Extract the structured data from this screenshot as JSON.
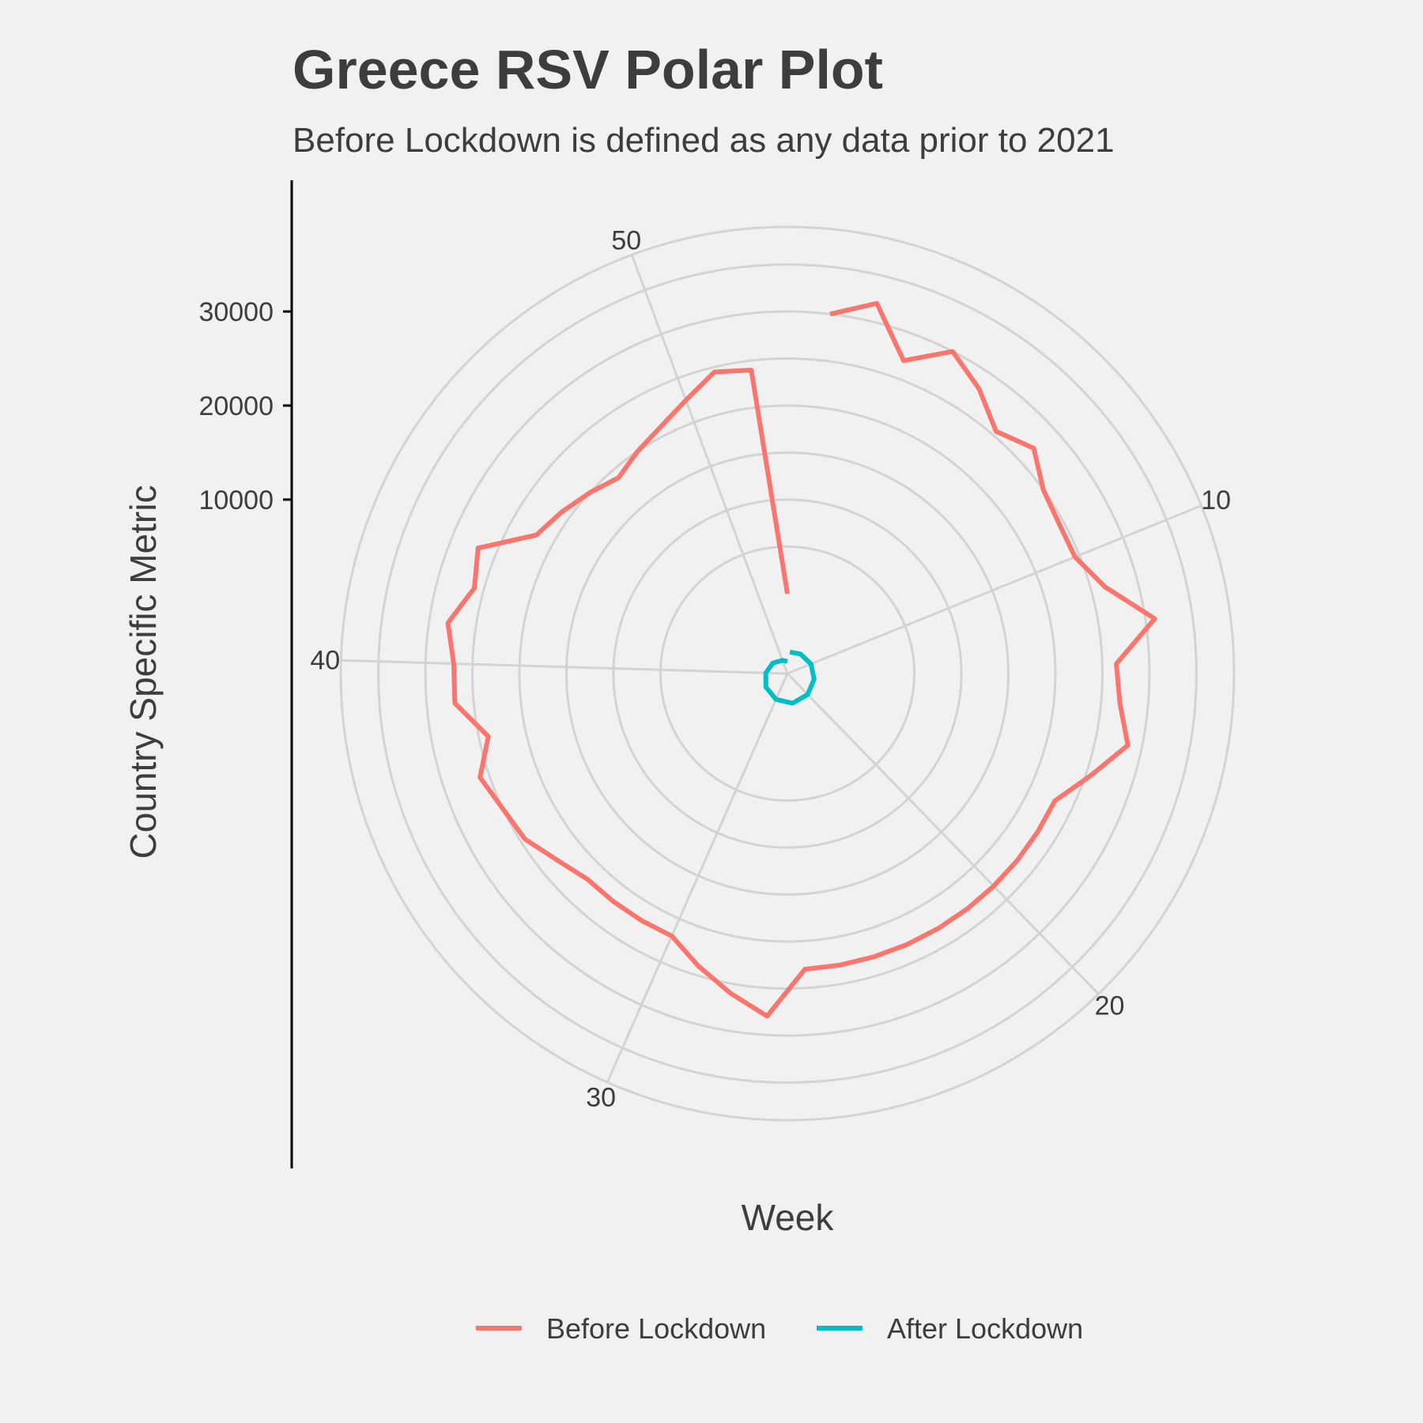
{
  "chart_data": {
    "type": "line",
    "coord": "polar",
    "title": "Greece RSV Polar Plot",
    "subtitle": "Before Lockdown is defined as any data prior to 2021",
    "xlabel": "Week",
    "ylabel": "Country Specific Metric",
    "theta_range": [
      0,
      53
    ],
    "theta_ticks": [
      10,
      20,
      30,
      40,
      50
    ],
    "r_range": [
      -8500,
      39000
    ],
    "r_ticks": [
      10000,
      20000,
      30000
    ],
    "grid": true,
    "legend_position": "bottom",
    "series": [
      {
        "name": "Before Lockdown",
        "color": "#f8766d",
        "weeks": [
          1,
          2,
          3,
          4,
          5,
          6,
          7,
          8,
          9,
          10,
          11,
          12,
          13,
          14,
          15,
          16,
          17,
          18,
          19,
          20,
          21,
          22,
          23,
          24,
          25,
          26,
          27,
          28,
          29,
          30,
          31,
          32,
          33,
          34,
          35,
          36,
          37,
          38,
          39,
          40,
          41,
          42,
          43,
          44,
          45,
          46,
          47,
          48,
          49,
          50,
          51,
          52,
          53
        ],
        "values": [
          30000,
          32000,
          27000,
          30000,
          28000,
          25500,
          27000,
          25000,
          24500,
          24500,
          26500,
          31000,
          26500,
          27000,
          28500,
          25500,
          23000,
          23000,
          23000,
          23000,
          23000,
          23000,
          23000,
          23000,
          23000,
          23000,
          28000,
          26000,
          24000,
          22000,
          22000,
          22000,
          22000,
          23000,
          24500,
          25000,
          26000,
          24000,
          27000,
          27000,
          28000,
          26000,
          27000,
          22000,
          21000,
          20000,
          19000,
          20000,
          21000,
          22500,
          24500,
          24000,
          0
        ]
      },
      {
        "name": "After Lockdown",
        "color": "#00bfc4",
        "weeks": [
          1,
          5,
          10,
          15,
          20,
          25,
          30,
          35,
          40,
          45,
          50,
          53
        ],
        "values": [
          -6200,
          -6000,
          -5800,
          -5600,
          -5400,
          -5300,
          -5500,
          -5800,
          -6200,
          -6600,
          -7000,
          -7200
        ]
      }
    ]
  }
}
